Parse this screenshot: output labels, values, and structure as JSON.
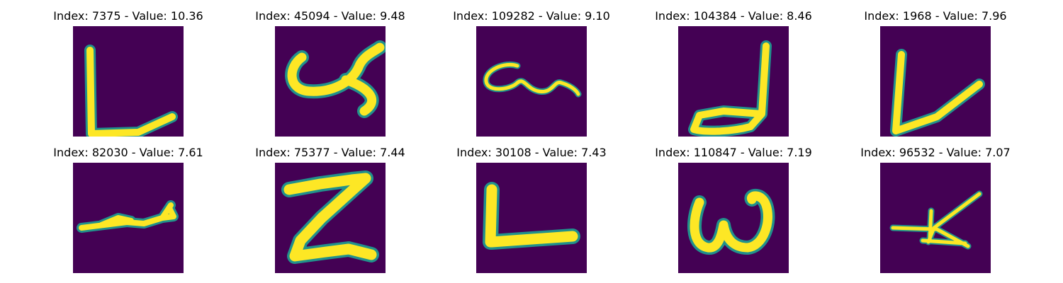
{
  "chart_data": {
    "type": "image_grid",
    "colormap": "viridis",
    "background_color": "#440154",
    "stroke_colors": [
      "#fde725",
      "#35b779",
      "#21918c"
    ],
    "panels": [
      {
        "title": "Index: 7375 - Value: 10.36",
        "index": 7375,
        "value": 10.36,
        "glyph": "L"
      },
      {
        "title": "Index: 45094 - Value: 9.48",
        "index": 45094,
        "value": 9.48,
        "glyph": "y"
      },
      {
        "title": "Index: 109282 - Value: 9.10",
        "index": 109282,
        "value": 9.1,
        "glyph": "loop-stroke"
      },
      {
        "title": "Index: 104384 - Value: 8.46",
        "index": 104384,
        "value": 8.46,
        "glyph": "J"
      },
      {
        "title": "Index: 1968 - Value: 7.96",
        "index": 1968,
        "value": 7.96,
        "glyph": "L"
      },
      {
        "title": "Index: 82030 - Value: 7.61",
        "index": 82030,
        "value": 7.61,
        "glyph": "scribble-stroke"
      },
      {
        "title": "Index: 75377 - Value: 7.44",
        "index": 75377,
        "value": 7.44,
        "glyph": "Z"
      },
      {
        "title": "Index: 30108 - Value: 7.43",
        "index": 30108,
        "value": 7.43,
        "glyph": "L"
      },
      {
        "title": "Index: 110847 - Value: 7.19",
        "index": 110847,
        "value": 7.19,
        "glyph": "w"
      },
      {
        "title": "Index: 96532 - Value: 7.07",
        "index": 96532,
        "value": 7.07,
        "glyph": "k"
      }
    ]
  }
}
